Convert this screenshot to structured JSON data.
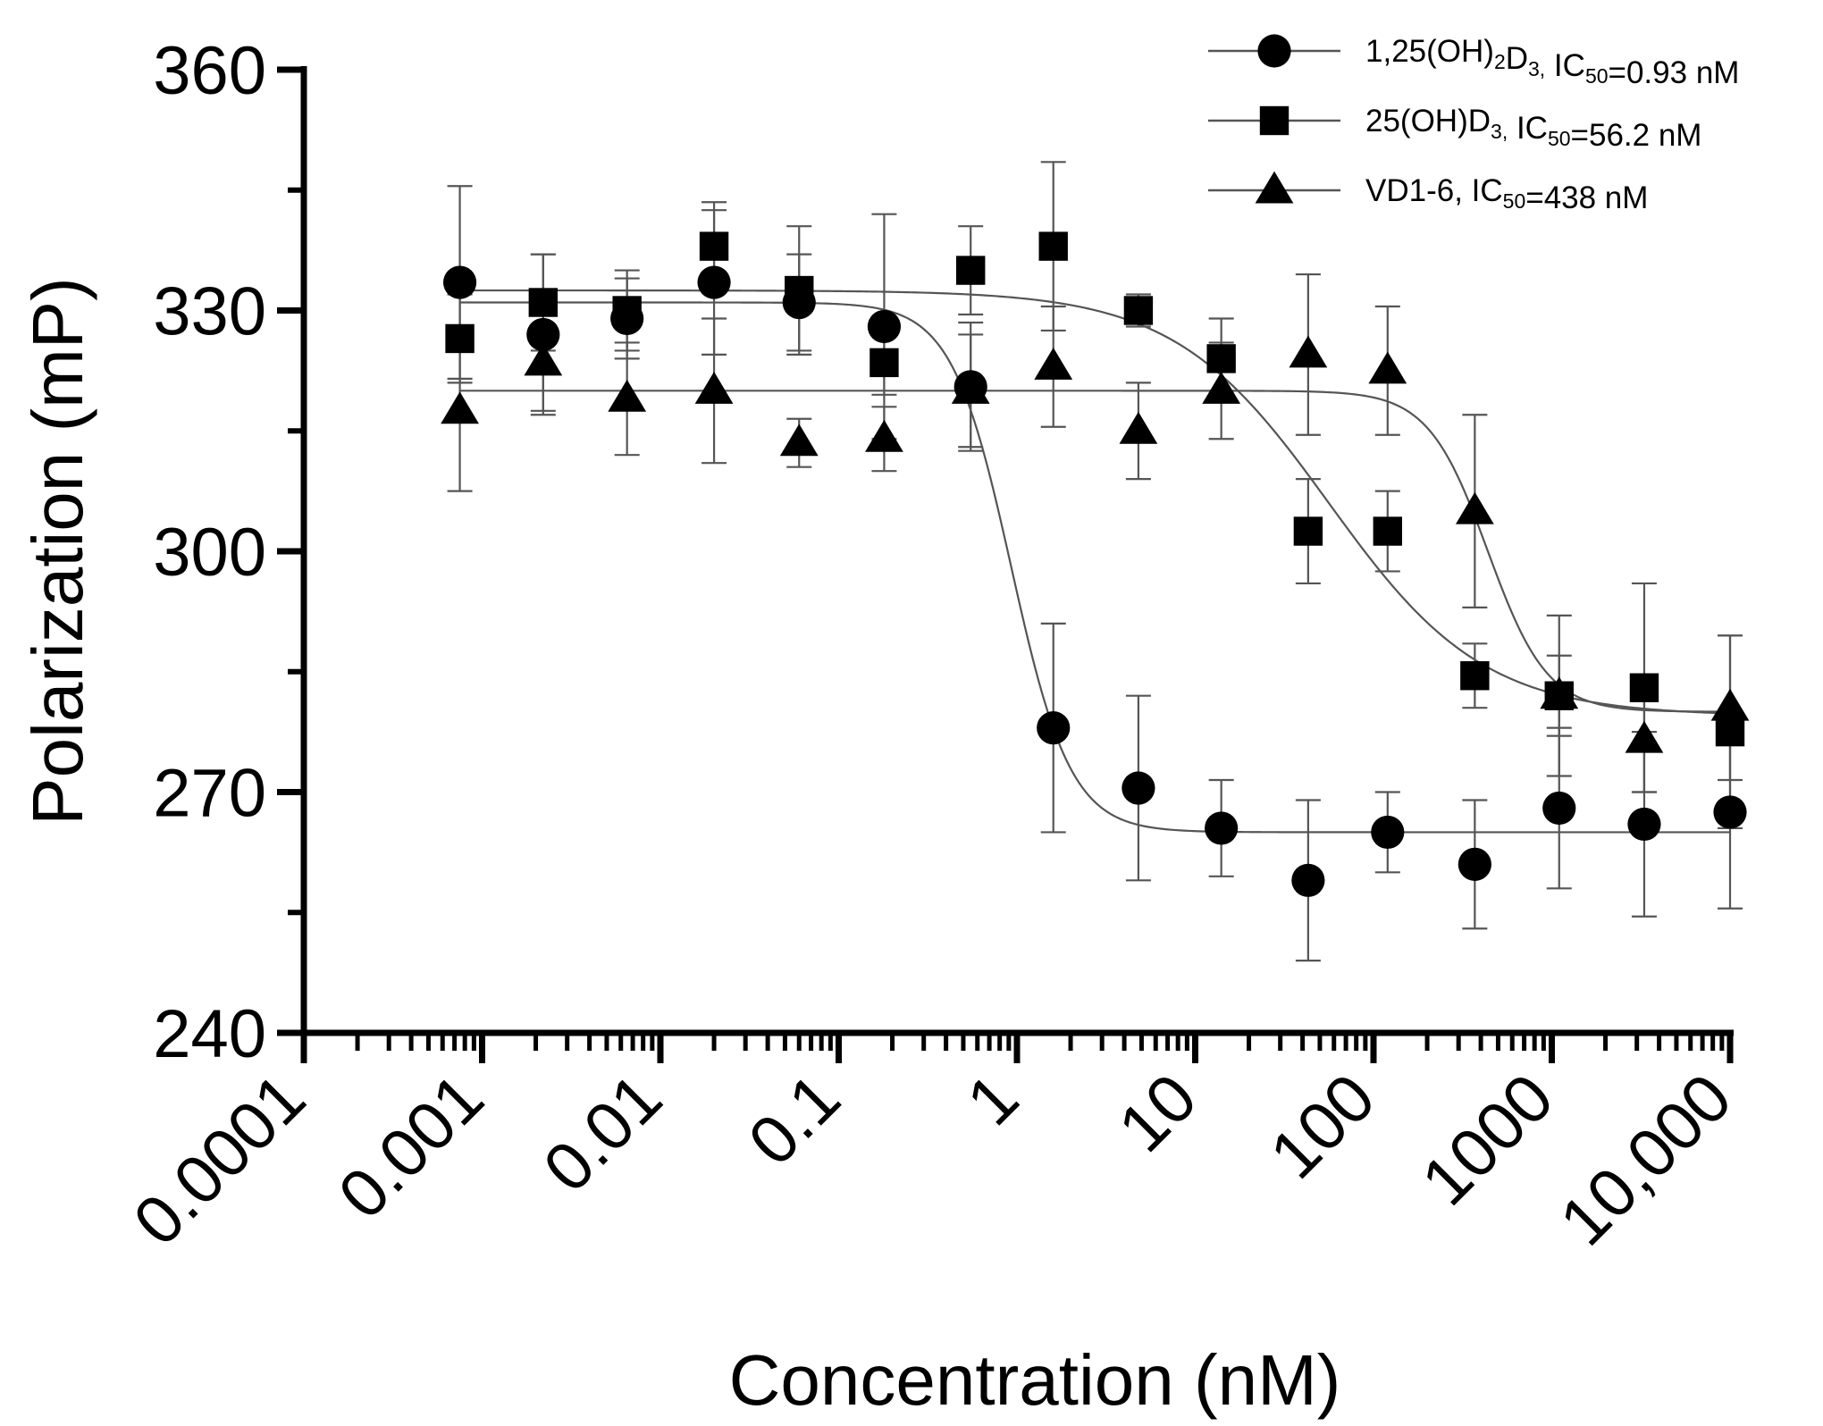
{
  "chart_data": {
    "type": "scatter",
    "title": "",
    "xlabel": "Concentration (nM)",
    "ylabel": "Polarization (mP)",
    "xscale": "log",
    "xlim": [
      0.0001,
      10000
    ],
    "ylim": [
      240,
      360
    ],
    "x_ticks": [
      0.0001,
      0.001,
      0.01,
      0.1,
      1,
      10,
      100,
      1000,
      10000
    ],
    "x_tick_labels": [
      "0.0001",
      "0.001",
      "0.01",
      "0.1",
      "1",
      "10",
      "100",
      "1000",
      "10,000"
    ],
    "y_ticks": [
      240,
      270,
      300,
      330,
      360
    ],
    "y_tick_labels": [
      "240",
      "270",
      "300",
      "330",
      "360"
    ],
    "grid": false,
    "legend_position": "top-right",
    "series": [
      {
        "name": "1,25(OH)2D3, IC50=0.93 nM",
        "legend_parts": [
          {
            "text": "1,25(OH)",
            "sub": false
          },
          {
            "text": "2",
            "sub": true
          },
          {
            "text": "D",
            "sub": false
          },
          {
            "text": "3,",
            "sub": true
          },
          {
            "text": " IC",
            "sub": false
          },
          {
            "text": "50",
            "sub": true
          },
          {
            "text": "=0.93 nM",
            "sub": false
          }
        ],
        "marker": "circle",
        "x": [
          0.00075,
          0.0022,
          0.0065,
          0.02,
          0.06,
          0.18,
          0.55,
          1.6,
          4.8,
          14,
          43,
          120,
          370,
          1100,
          3300,
          10000
        ],
        "y": [
          333.5,
          327,
          329,
          333.5,
          331,
          328,
          320.5,
          278,
          270.5,
          265.5,
          259,
          265,
          261,
          268,
          266,
          267.5
        ],
        "err": [
          12,
          10,
          5,
          9,
          6,
          14,
          8,
          13,
          11.5,
          6,
          10,
          5,
          8,
          10,
          11.5,
          12
        ],
        "fit": {
          "top": 331,
          "bottom": 265,
          "ic50": 0.93,
          "hill": 2.6
        }
      },
      {
        "name": "25(OH)D3, IC50=56.2 nM",
        "legend_parts": [
          {
            "text": "25(OH)D",
            "sub": false
          },
          {
            "text": "3,",
            "sub": true
          },
          {
            "text": " IC",
            "sub": false
          },
          {
            "text": "50",
            "sub": true
          },
          {
            "text": "=56.2 nM",
            "sub": false
          }
        ],
        "marker": "square",
        "x": [
          0.00075,
          0.0022,
          0.0065,
          0.02,
          0.06,
          0.18,
          0.55,
          1.6,
          4.8,
          14,
          43,
          120,
          370,
          1100,
          3300,
          10000
        ],
        "y": [
          326.5,
          331,
          330,
          338,
          332.5,
          323.5,
          335,
          338,
          330,
          324,
          302.5,
          302.5,
          284.5,
          282,
          283,
          277.5
        ],
        "err": [
          5.5,
          6,
          5,
          5.5,
          8,
          4,
          5.5,
          10.5,
          2,
          5,
          6.5,
          5,
          4,
          5,
          13,
          12
        ],
        "fit": {
          "top": 332.5,
          "bottom": 279.5,
          "ic50": 56.2,
          "hill": 1.0
        }
      },
      {
        "name": "VD1-6, IC50=438 nM",
        "legend_parts": [
          {
            "text": "VD1-6, IC",
            "sub": false
          },
          {
            "text": "50",
            "sub": true
          },
          {
            "text": "=438 nM",
            "sub": false
          }
        ],
        "marker": "triangle",
        "x": [
          0.00075,
          0.0022,
          0.0065,
          0.02,
          0.06,
          0.18,
          0.55,
          1.6,
          4.8,
          14,
          43,
          120,
          370,
          1100,
          3300,
          10000
        ],
        "y": [
          317.5,
          323.5,
          319,
          320,
          313.5,
          314,
          320,
          323,
          315,
          320,
          324.5,
          322.5,
          305,
          282,
          276.5,
          280.5
        ],
        "err": [
          10,
          6,
          7,
          9,
          3,
          4,
          7,
          7.5,
          6,
          6,
          10,
          8,
          12,
          10,
          6.5,
          9
        ],
        "fit": {
          "top": 320,
          "bottom": 280,
          "ic50": 438,
          "hill": 2.6
        }
      }
    ]
  }
}
